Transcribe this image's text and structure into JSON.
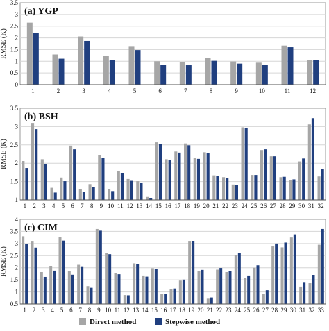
{
  "legend": [
    {
      "name": "Direct method",
      "color": "#a6a6a6"
    },
    {
      "name": "Stepwise method",
      "color": "#203f7f"
    }
  ],
  "chart_data": [
    {
      "type": "bar",
      "title": "(a) YGP",
      "ylabel": "RMSE (K)",
      "ylim": [
        0,
        3.5
      ],
      "yticks": [
        0,
        0.5,
        1,
        1.5,
        2,
        2.5,
        3,
        3.5
      ],
      "grid": true,
      "categories": [
        "1",
        "2",
        "3",
        "4",
        "5",
        "6",
        "7",
        "8",
        "9",
        "10",
        "11",
        "12"
      ],
      "series": [
        {
          "name": "Direct method",
          "values": [
            2.65,
            1.29,
            2.06,
            1.23,
            1.62,
            1.0,
            0.97,
            1.13,
            0.99,
            0.94,
            1.67,
            1.06
          ]
        },
        {
          "name": "Stepwise method",
          "values": [
            2.22,
            1.11,
            1.87,
            1.06,
            1.48,
            0.86,
            0.83,
            1.02,
            0.9,
            0.84,
            1.6,
            1.05
          ]
        }
      ]
    },
    {
      "type": "bar",
      "title": "(b) BSH",
      "ylabel": "RMSE (K)",
      "ylim": [
        1,
        3.5
      ],
      "yticks": [
        1,
        1.5,
        2,
        2.5,
        3,
        3.5
      ],
      "grid": true,
      "categories": [
        "1",
        "2",
        "3",
        "4",
        "5",
        "6",
        "7",
        "8",
        "9",
        "10",
        "11",
        "12",
        "13",
        "14",
        "15",
        "16",
        "17",
        "18",
        "19",
        "20",
        "21",
        "22",
        "23",
        "24",
        "25",
        "26",
        "27",
        "28",
        "29",
        "30",
        "31",
        "32"
      ],
      "series": [
        {
          "name": "Direct method",
          "values": [
            2.06,
            3.1,
            2.11,
            1.33,
            1.61,
            2.48,
            1.3,
            1.43,
            2.22,
            1.3,
            1.78,
            1.57,
            1.51,
            1.08,
            2.57,
            2.11,
            2.32,
            2.54,
            2.15,
            2.3,
            1.67,
            1.62,
            1.42,
            2.98,
            1.68,
            2.36,
            2.19,
            1.62,
            1.53,
            2.05,
            3.06,
            1.64
          ]
        },
        {
          "name": "Stepwise method",
          "values": [
            1.87,
            2.93,
            1.98,
            1.2,
            1.51,
            2.38,
            1.21,
            1.35,
            2.15,
            1.24,
            1.72,
            1.52,
            1.47,
            1.04,
            2.53,
            2.08,
            2.29,
            2.49,
            2.12,
            2.27,
            1.65,
            1.6,
            1.4,
            2.97,
            1.68,
            2.38,
            2.19,
            1.63,
            1.56,
            2.13,
            3.23,
            1.84
          ]
        }
      ]
    },
    {
      "type": "bar",
      "title": "(c) CIM",
      "ylabel": "RMSE (K)",
      "ylim": [
        0.5,
        4
      ],
      "yticks": [
        0.5,
        1,
        1.5,
        2,
        2.5,
        3,
        3.5,
        4
      ],
      "grid": true,
      "categories": [
        "1",
        "2",
        "3",
        "4",
        "5",
        "6",
        "7",
        "8",
        "9",
        "10",
        "11",
        "12",
        "13",
        "14",
        "15",
        "16",
        "17",
        "18",
        "19",
        "20",
        "21",
        "22",
        "23",
        "24",
        "25",
        "26",
        "27",
        "28",
        "29",
        "30",
        "31",
        "32",
        "33"
      ],
      "series": [
        {
          "name": "Direct method",
          "values": [
            3.3,
            3.08,
            1.82,
            2.07,
            3.27,
            1.85,
            2.12,
            1.24,
            3.6,
            2.6,
            1.77,
            0.87,
            2.18,
            1.65,
            1.98,
            0.92,
            1.13,
            1.47,
            3.08,
            1.87,
            0.72,
            1.92,
            1.82,
            2.52,
            1.57,
            2.0,
            0.93,
            2.88,
            2.84,
            3.25,
            1.22,
            1.36,
            2.95
          ]
        },
        {
          "name": "Stepwise method",
          "values": [
            2.98,
            2.83,
            1.62,
            1.88,
            3.12,
            1.71,
            2.03,
            1.17,
            3.53,
            2.56,
            1.73,
            0.86,
            2.15,
            1.63,
            1.96,
            0.92,
            1.14,
            1.51,
            3.11,
            1.91,
            0.77,
            1.99,
            1.86,
            2.62,
            1.65,
            2.1,
            1.07,
            3.0,
            3.04,
            3.38,
            1.38,
            1.7,
            3.6
          ]
        }
      ]
    }
  ]
}
